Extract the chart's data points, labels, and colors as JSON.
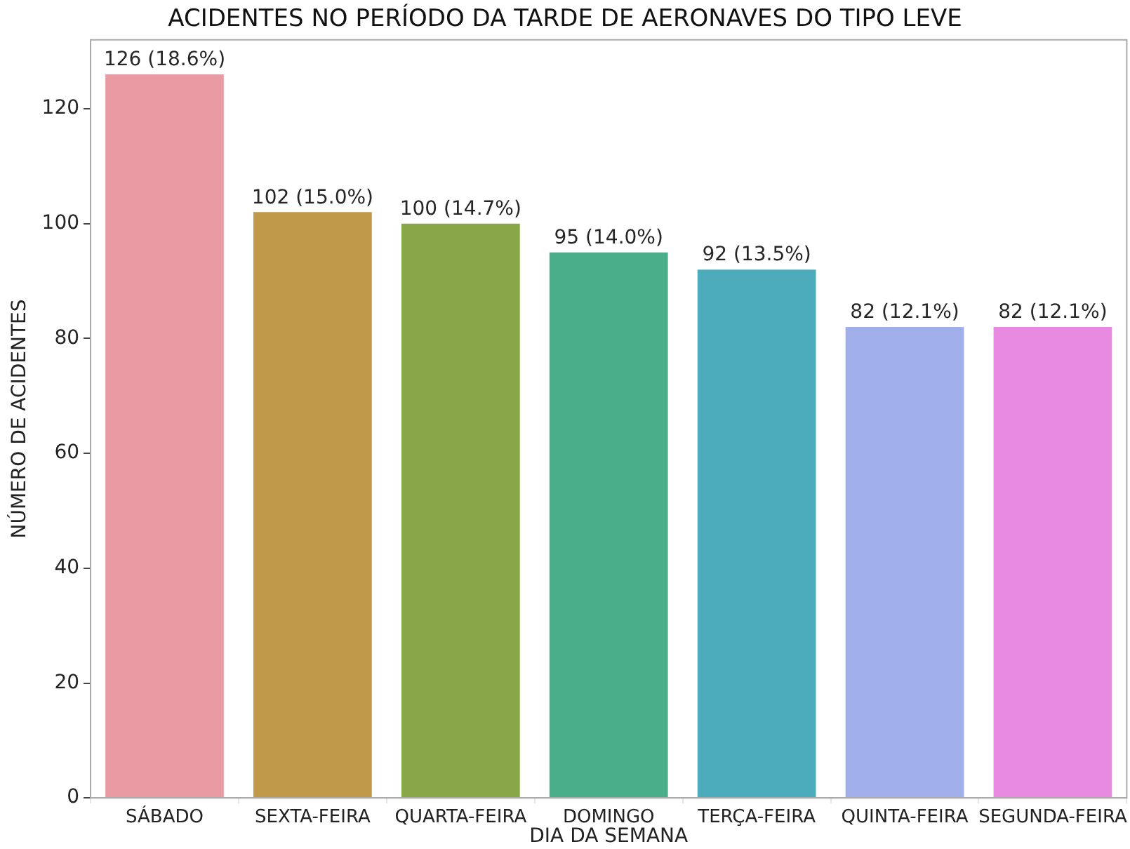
{
  "chart_data": {
    "type": "bar",
    "title": "ACIDENTES NO PERÍODO DA TARDE DE AERONAVES DO TIPO LEVE",
    "xlabel": "DIA DA SEMANA",
    "ylabel": "NÚMERO DE ACIDENTES",
    "categories": [
      "SÁBADO",
      "SEXTA-FEIRA",
      "QUARTA-FEIRA",
      "DOMINGO",
      "TERÇA-FEIRA",
      "QUINTA-FEIRA",
      "SEGUNDA-FEIRA"
    ],
    "values": [
      126,
      102,
      100,
      95,
      92,
      82,
      82
    ],
    "colors": [
      "#e99aa3",
      "#c0994b",
      "#88a848",
      "#4aae8a",
      "#4cacbc",
      "#a0aeea",
      "#e88ae0"
    ],
    "value_labels": [
      "126 (18.6%)",
      "102 (15.0%)",
      "100 (14.7%)",
      "95 (14.0%)",
      "92 (13.5%)",
      "82 (12.1%)",
      "82 (12.1%)"
    ],
    "ylim": [
      0,
      132
    ],
    "yticks": [
      0,
      20,
      40,
      60,
      80,
      100,
      120
    ],
    "grid": false,
    "legend": false
  }
}
